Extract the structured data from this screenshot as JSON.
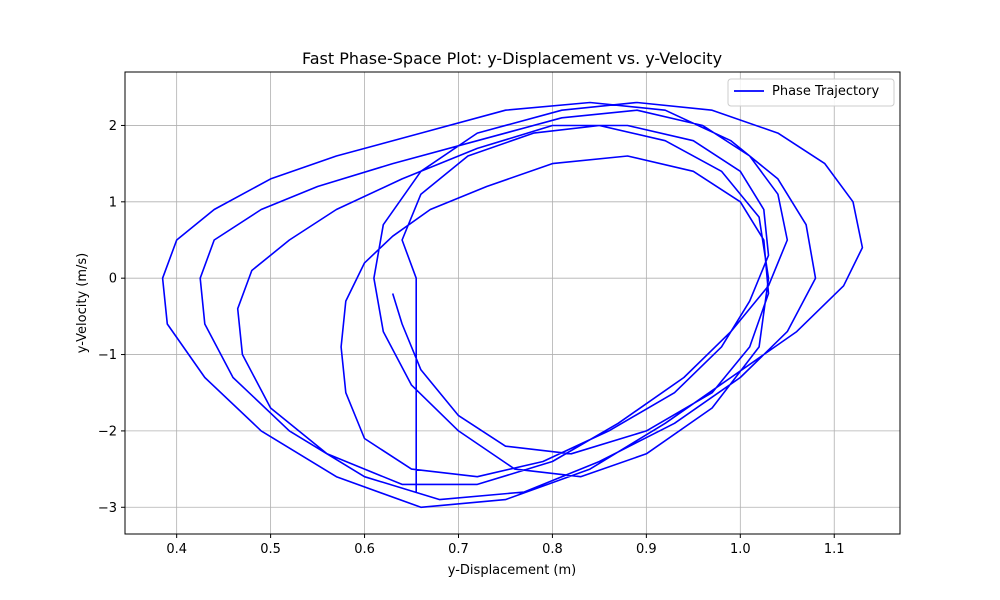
{
  "chart_data": {
    "type": "line",
    "title": "Fast Phase-Space Plot: y-Displacement vs. y-Velocity",
    "xlabel": "y-Displacement (m)",
    "ylabel": "y-Velocity (m/s)",
    "xlim": [
      0.345,
      1.17
    ],
    "ylim": [
      -3.35,
      2.7
    ],
    "x_ticks": [
      0.4,
      0.5,
      0.6,
      0.7,
      0.8,
      0.9,
      1.0,
      1.1
    ],
    "x_tick_labels": [
      "0.4",
      "0.5",
      "0.6",
      "0.7",
      "0.8",
      "0.9",
      "1.0",
      "1.1"
    ],
    "y_ticks": [
      -3,
      -2,
      -1,
      0,
      1,
      2
    ],
    "y_tick_labels": [
      "−3",
      "−2",
      "−1",
      "0",
      "1",
      "2"
    ],
    "grid": true,
    "legend_position": "top-right",
    "series": [
      {
        "name": "Phase Trajectory",
        "color": "#0000ff",
        "x": [
          0.63,
          0.64,
          0.66,
          0.7,
          0.75,
          0.82,
          0.9,
          0.97,
          1.01,
          1.03,
          1.025,
          1.0,
          0.95,
          0.88,
          0.8,
          0.73,
          0.67,
          0.63,
          0.6,
          0.58,
          0.575,
          0.58,
          0.6,
          0.65,
          0.72,
          0.79,
          0.86,
          0.93,
          0.98,
          1.01,
          1.03,
          1.025,
          1.0,
          0.95,
          0.88,
          0.8,
          0.72,
          0.64,
          0.57,
          0.52,
          0.48,
          0.465,
          0.47,
          0.5,
          0.56,
          0.64,
          0.72,
          0.8,
          0.87,
          0.94,
          0.99,
          1.03,
          1.05,
          1.04,
          1.01,
          0.96,
          0.89,
          0.81,
          0.72,
          0.63,
          0.55,
          0.49,
          0.44,
          0.425,
          0.43,
          0.46,
          0.52,
          0.6,
          0.68,
          0.77,
          0.85,
          0.93,
          1.0,
          1.05,
          1.08,
          1.07,
          1.04,
          0.99,
          0.92,
          0.84,
          0.75,
          0.66,
          0.57,
          0.5,
          0.44,
          0.4,
          0.385,
          0.39,
          0.43,
          0.49,
          0.57,
          0.66,
          0.75,
          0.84,
          0.92,
          0.99,
          1.06,
          1.11,
          1.13,
          1.12,
          1.09,
          1.04,
          0.97,
          0.89,
          0.81,
          0.72,
          0.66,
          0.62,
          0.61,
          0.62,
          0.65,
          0.7,
          0.76,
          0.83,
          0.9,
          0.97,
          1.02,
          1.03,
          1.02,
          0.98,
          0.92,
          0.85,
          0.78,
          0.71,
          0.66,
          0.64,
          0.655,
          0.655
        ],
        "y": [
          -0.2,
          -0.6,
          -1.2,
          -1.8,
          -2.2,
          -2.3,
          -2.0,
          -1.5,
          -0.9,
          -0.2,
          0.5,
          1.0,
          1.4,
          1.6,
          1.5,
          1.2,
          0.9,
          0.55,
          0.2,
          -0.3,
          -0.9,
          -1.5,
          -2.1,
          -2.5,
          -2.6,
          -2.4,
          -2.0,
          -1.5,
          -0.9,
          -0.3,
          0.3,
          0.9,
          1.4,
          1.8,
          2.0,
          2.0,
          1.7,
          1.3,
          0.9,
          0.5,
          0.1,
          -0.4,
          -1.0,
          -1.7,
          -2.3,
          -2.7,
          -2.7,
          -2.4,
          -1.9,
          -1.3,
          -0.7,
          -0.1,
          0.5,
          1.1,
          1.6,
          2.0,
          2.2,
          2.1,
          1.8,
          1.5,
          1.2,
          0.9,
          0.5,
          0.0,
          -0.6,
          -1.3,
          -2.0,
          -2.6,
          -2.9,
          -2.8,
          -2.4,
          -1.9,
          -1.3,
          -0.7,
          0.0,
          0.7,
          1.3,
          1.8,
          2.2,
          2.3,
          2.2,
          1.9,
          1.6,
          1.3,
          0.9,
          0.5,
          0.0,
          -0.6,
          -1.3,
          -2.0,
          -2.6,
          -3.0,
          -2.9,
          -2.5,
          -1.9,
          -1.3,
          -0.7,
          -0.1,
          0.4,
          1.0,
          1.5,
          1.9,
          2.2,
          2.3,
          2.2,
          1.9,
          1.4,
          0.7,
          0.0,
          -0.7,
          -1.4,
          -2.0,
          -2.5,
          -2.6,
          -2.3,
          -1.7,
          -0.9,
          0.0,
          0.8,
          1.4,
          1.8,
          2.0,
          1.9,
          1.6,
          1.1,
          0.5,
          0.0,
          -2.8
        ]
      }
    ]
  }
}
